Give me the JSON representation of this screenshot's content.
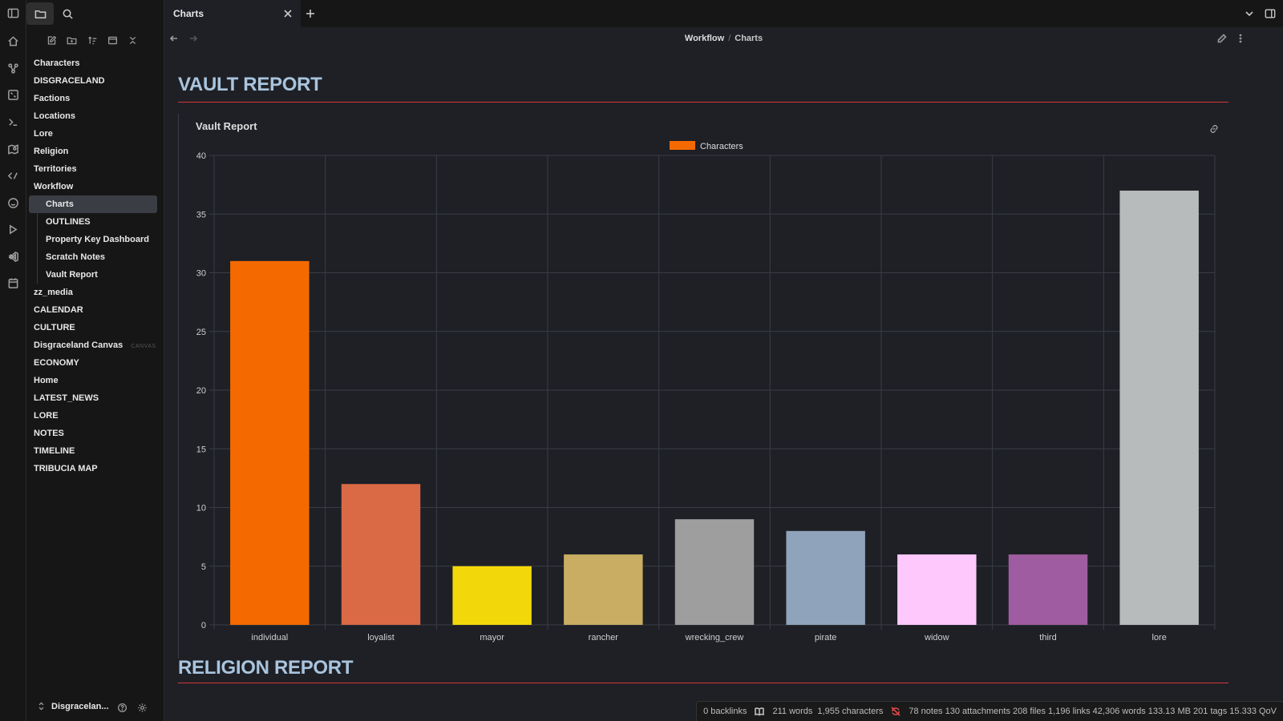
{
  "ribbon": {
    "icons": [
      "home-icon",
      "graph-icon",
      "canvas-icon",
      "terminal-icon",
      "map-icon",
      "templater-icon",
      "face-icon",
      "play-icon",
      "vscode-icon",
      "calendar-icon"
    ]
  },
  "sidebar": {
    "tree": [
      {
        "label": "Characters",
        "level": 0
      },
      {
        "label": "DISGRACELAND",
        "level": 0
      },
      {
        "label": "Factions",
        "level": 0
      },
      {
        "label": "Locations",
        "level": 0
      },
      {
        "label": "Lore",
        "level": 0
      },
      {
        "label": "Religion",
        "level": 0
      },
      {
        "label": "Territories",
        "level": 0
      },
      {
        "label": "Workflow",
        "level": 0
      },
      {
        "label": "Charts",
        "level": 1,
        "active": true
      },
      {
        "label": "OUTLINES",
        "level": 1
      },
      {
        "label": "Property Key Dashboard",
        "level": 1
      },
      {
        "label": "Scratch Notes",
        "level": 1
      },
      {
        "label": "Vault Report",
        "level": 1
      },
      {
        "label": "zz_media",
        "level": 0
      },
      {
        "label": "CALENDAR",
        "level": 0
      },
      {
        "label": "CULTURE",
        "level": 0
      },
      {
        "label": "Disgraceland Canvas",
        "level": 0,
        "tag": "CANVAS"
      },
      {
        "label": "ECONOMY",
        "level": 0
      },
      {
        "label": "Home",
        "level": 0
      },
      {
        "label": "LATEST_NEWS",
        "level": 0
      },
      {
        "label": "LORE",
        "level": 0
      },
      {
        "label": "NOTES",
        "level": 0
      },
      {
        "label": "TIMELINE",
        "level": 0
      },
      {
        "label": "TRIBUCIA MAP",
        "level": 0
      }
    ],
    "vault_name": "Disgracelan..."
  },
  "tab": {
    "title": "Charts"
  },
  "breadcrumb": {
    "parent": "Workflow",
    "separator": "/",
    "current": "Charts"
  },
  "main": {
    "heading1": "VAULT REPORT",
    "heading2": "RELIGION REPORT",
    "chart_title": "Vault Report"
  },
  "chart_data": {
    "type": "bar",
    "title": "Vault Report",
    "categories": [
      "individual",
      "loyalist",
      "mayor",
      "rancher",
      "wrecking_crew",
      "pirate",
      "widow",
      "third",
      "lore"
    ],
    "series": [
      {
        "name": "Characters",
        "values": [
          31,
          12,
          5,
          6,
          9,
          8,
          6,
          6,
          37
        ]
      }
    ],
    "bar_colors": [
      "#f56a00",
      "#d96a45",
      "#f2d80a",
      "#c8ad63",
      "#9e9e9e",
      "#8fa3bb",
      "#ffc8fd",
      "#a05ca0",
      "#b8bbbc"
    ],
    "legend_color": "#f56a00",
    "ylim": [
      0,
      40
    ],
    "yticks": [
      0,
      5,
      10,
      15,
      20,
      25,
      30,
      35,
      40
    ],
    "grid": true,
    "legend_position": "top-center"
  },
  "status": {
    "backlinks": "0 backlinks",
    "words": "211 words",
    "characters": "1,955 characters",
    "vault_stats": "78 notes 130 attachments 208 files 1,196 links 42,306 words 133.13 MB 201 tags 15.333 QoV"
  },
  "colors": {
    "accent_red": "#d6363a",
    "heading": "#a9c4dd",
    "background": "#1e2026"
  }
}
